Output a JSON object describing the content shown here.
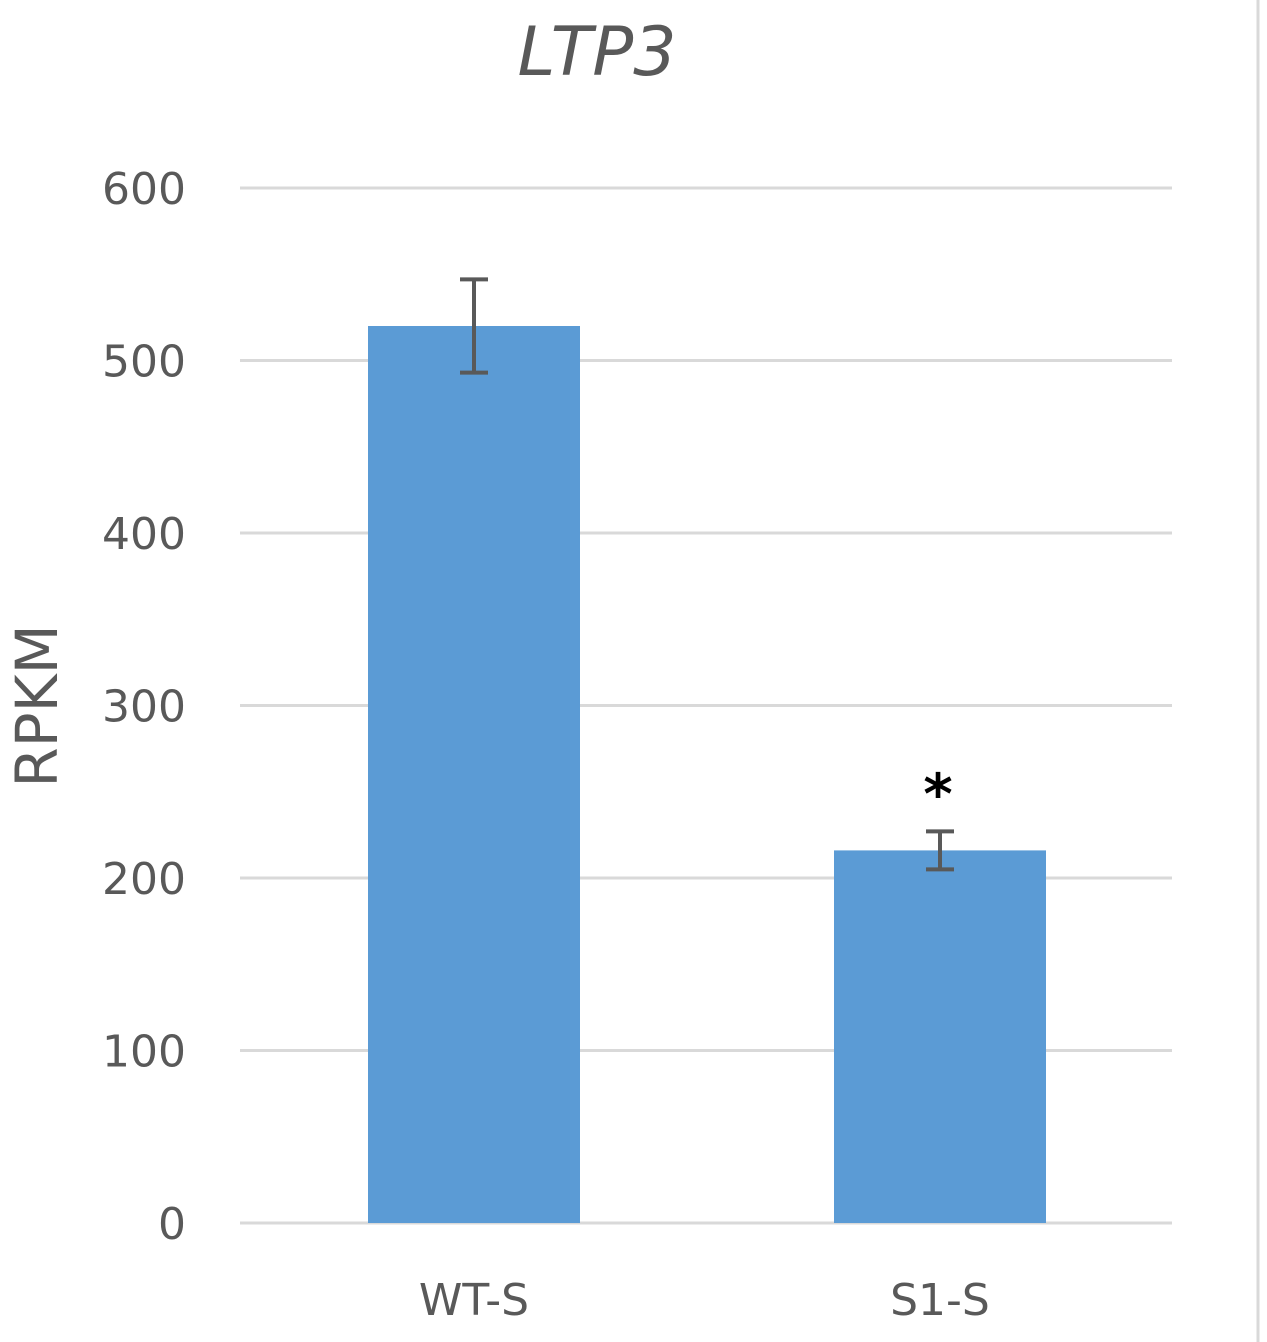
{
  "chart_data": {
    "type": "bar",
    "title": "LTP3",
    "ylabel": "RPKM",
    "xlabel": "",
    "categories": [
      "WT-S",
      "S1-S"
    ],
    "values": [
      520,
      216
    ],
    "errors": [
      27,
      11
    ],
    "annotations": [
      "",
      "*"
    ],
    "ylim": [
      0,
      600
    ],
    "yticks": [
      0,
      100,
      200,
      300,
      400,
      500,
      600
    ],
    "ytick_labels": [
      "0",
      "100",
      "200",
      "300",
      "400",
      "500",
      "600"
    ],
    "grid": true,
    "legend": "none",
    "bar_color": "#5b9bd5",
    "error_color": "#595959",
    "grid_color": "#d9d9d9"
  }
}
